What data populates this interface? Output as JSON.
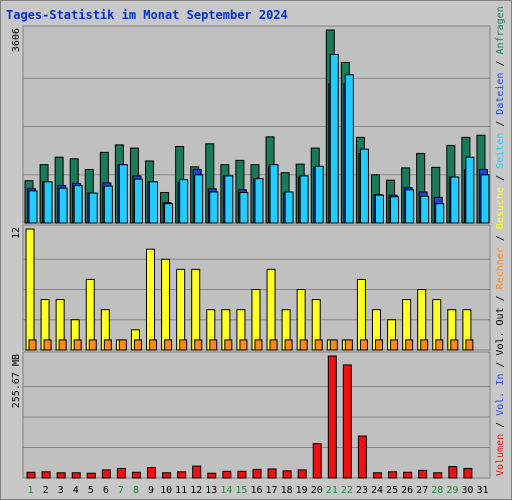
{
  "chart_data": {
    "type": "bar",
    "title": "Tages-Statistik im Monat September 2024",
    "days": [
      "1",
      "2",
      "3",
      "4",
      "5",
      "6",
      "7",
      "8",
      "9",
      "10",
      "11",
      "12",
      "13",
      "14",
      "15",
      "16",
      "17",
      "18",
      "19",
      "20",
      "21",
      "22",
      "23",
      "24",
      "25",
      "26",
      "27",
      "28",
      "29",
      "30",
      "31"
    ],
    "weekend_days": [
      "1",
      "7",
      "8",
      "14",
      "15",
      "21",
      "22",
      "28",
      "29"
    ],
    "colors": {
      "anfragen": "#1a7a5a",
      "dateien": "#2244dd",
      "seiten": "#22ccff",
      "besuche": "#ffff22",
      "rechner": "#ff8822",
      "volumen": "#ee1111",
      "weekend": "#228833",
      "weekday": "#000000"
    },
    "panels": [
      {
        "name": "hits",
        "ymax_label": "3606",
        "ymax": 3606,
        "series": [
          {
            "name": "Anfragen",
            "values": [
              790,
              1090,
              1230,
              1200,
              1000,
              1320,
              1460,
              1400,
              1160,
              570,
              1430,
              1050,
              1480,
              1090,
              1170,
              1090,
              1610,
              940,
              1100,
              1400,
              3606,
              3000,
              1600,
              900,
              800,
              1030,
              1300,
              1040,
              1450,
              1600,
              1640
            ]
          },
          {
            "name": "Dateien",
            "values": [
              640,
              770,
              700,
              740,
              560,
              750,
              1080,
              880,
              770,
              380,
              760,
              1000,
              640,
              880,
              620,
              830,
              1060,
              560,
              860,
              1040,
              2600,
              2600,
              1300,
              530,
              520,
              660,
              580,
              480,
              860,
              1000,
              1000
            ]
          },
          {
            "name": "Seiten",
            "values": [
              600,
              770,
              650,
              700,
              560,
              690,
              1090,
              820,
              770,
              360,
              810,
              900,
              580,
              880,
              570,
              830,
              1090,
              580,
              880,
              1060,
              3150,
              2770,
              1380,
              520,
              490,
              620,
              500,
              360,
              860,
              1230,
              900
            ]
          }
        ]
      },
      {
        "name": "visits",
        "ymax_label": "12",
        "ymax": 12,
        "series": [
          {
            "name": "Besuche",
            "values": [
              12,
              5,
              5,
              3,
              7,
              4,
              1,
              2,
              10,
              9,
              8,
              8,
              4,
              4,
              4,
              6,
              8,
              4,
              6,
              5,
              1,
              1,
              7,
              4,
              3,
              5,
              6,
              5,
              4,
              4,
              0
            ]
          },
          {
            "name": "Rechner",
            "values": [
              1,
              1,
              1,
              1,
              1,
              1,
              1,
              1,
              1,
              1,
              1,
              1,
              1,
              1,
              1,
              1,
              1,
              1,
              1,
              1,
              1,
              1,
              1,
              1,
              1,
              1,
              1,
              1,
              1,
              1,
              0
            ]
          }
        ]
      },
      {
        "name": "volume",
        "ymax_label": "255.67 MB",
        "ymax": 255.67,
        "series": [
          {
            "name": "Volumen",
            "values": [
              12,
              13,
              11,
              11,
              10,
              17,
              20,
              12,
              22,
              11,
              13,
              25,
              10,
              14,
              14,
              18,
              19,
              15,
              17,
              72,
              255.67,
              237,
              88,
              11,
              13,
              12,
              16,
              11,
              24,
              20,
              0
            ]
          }
        ]
      }
    ],
    "legend": [
      "Anfragen",
      "Dateien",
      "Seiten",
      "Besuche",
      "Rechner",
      "Vol. Out",
      "Vol. In",
      "Volumen"
    ],
    "legend_separator": "/"
  }
}
